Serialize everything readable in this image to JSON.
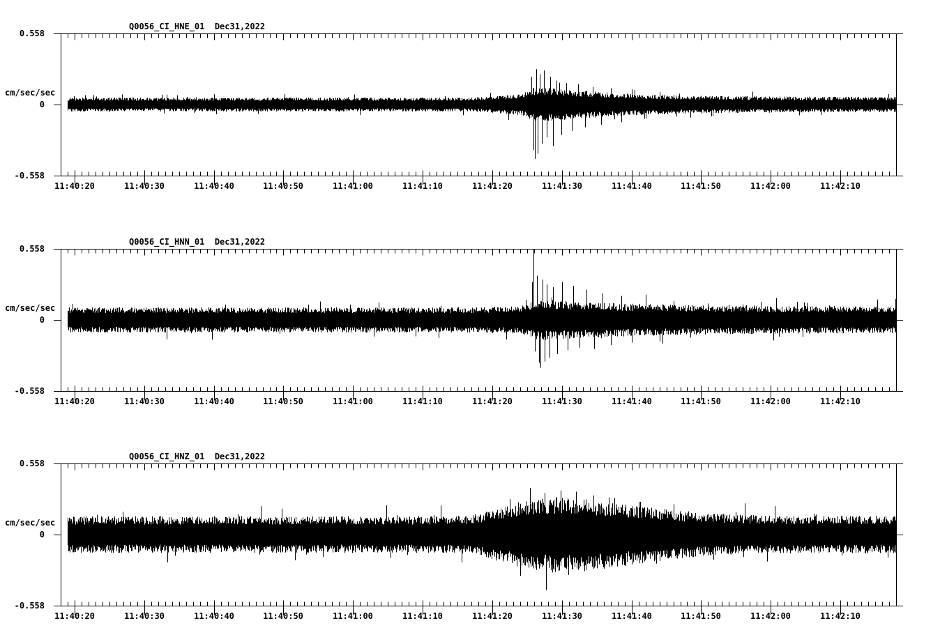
{
  "ui": {
    "background_color": "#ffffff",
    "ink_color": "#000000"
  },
  "time_axis": {
    "start": "11:40:18",
    "end": "11:42:18",
    "span_sec": 120,
    "minor_tick_sec": 1,
    "major_tick_sec": 10,
    "first_major_offset_sec": 2,
    "labels": [
      "11:40:20",
      "11:40:30",
      "11:40:40",
      "11:40:50",
      "11:41:00",
      "11:41:10",
      "11:41:20",
      "11:41:30",
      "11:41:40",
      "11:41:50",
      "11:42:00",
      "11:42:10"
    ]
  },
  "chart_data": [
    {
      "type": "line",
      "subtype": "seismogram",
      "title": "Q0056_CI_HNE_01  Dec31,2022",
      "station": "Q0056_CI_HNE_01",
      "date": "Dec31,2022",
      "ylabel": "cm/sec/sec",
      "yticks": [
        "0.558",
        "0",
        "-0.558"
      ],
      "ylim": [
        -0.558,
        0.558
      ],
      "event_peak_time": "11:41:26",
      "envelope": [
        [
          1,
          0.055
        ],
        [
          58,
          0.055
        ],
        [
          61,
          0.06
        ],
        [
          63,
          0.07
        ],
        [
          65,
          0.08
        ],
        [
          66.5,
          0.09
        ],
        [
          67.5,
          0.13
        ],
        [
          68.5,
          0.14
        ],
        [
          70,
          0.135
        ],
        [
          72,
          0.125
        ],
        [
          74,
          0.115
        ],
        [
          76,
          0.105
        ],
        [
          79,
          0.095
        ],
        [
          82,
          0.085
        ],
        [
          86,
          0.078
        ],
        [
          90,
          0.072
        ],
        [
          96,
          0.068
        ],
        [
          104,
          0.063
        ],
        [
          120,
          0.06
        ]
      ],
      "spikes": [
        [
          67.6,
          0.22
        ],
        [
          67.9,
          -0.36
        ],
        [
          68.1,
          -0.43
        ],
        [
          68.3,
          0.28
        ],
        [
          68.55,
          -0.39
        ],
        [
          68.8,
          0.24
        ],
        [
          69.1,
          -0.31
        ],
        [
          69.45,
          0.27
        ],
        [
          69.8,
          -0.26
        ],
        [
          70.3,
          0.22
        ],
        [
          70.7,
          -0.33
        ],
        [
          71.2,
          0.19
        ],
        [
          71.9,
          -0.24
        ],
        [
          72.6,
          0.17
        ],
        [
          73.4,
          -0.21
        ],
        [
          74.3,
          0.16
        ],
        [
          75.3,
          -0.18
        ],
        [
          76.4,
          0.14
        ],
        [
          77.6,
          -0.16
        ],
        [
          79,
          0.13
        ],
        [
          80.5,
          -0.14
        ],
        [
          82,
          0.12
        ],
        [
          84,
          -0.11
        ],
        [
          86,
          0.1
        ]
      ]
    },
    {
      "type": "line",
      "subtype": "seismogram",
      "title": "Q0056_CI_HNN_01  Dec31,2022",
      "station": "Q0056_CI_HNN_01",
      "date": "Dec31,2022",
      "ylabel": "cm/sec/sec",
      "yticks": [
        "0.558",
        "0",
        "-0.558"
      ],
      "ylim": [
        -0.558,
        0.558
      ],
      "event_peak_time": "11:41:26",
      "envelope": [
        [
          1,
          0.1
        ],
        [
          60,
          0.1
        ],
        [
          63,
          0.105
        ],
        [
          65,
          0.11
        ],
        [
          67,
          0.12
        ],
        [
          67.8,
          0.15
        ],
        [
          69,
          0.16
        ],
        [
          71,
          0.155
        ],
        [
          73,
          0.148
        ],
        [
          76,
          0.14
        ],
        [
          80,
          0.132
        ],
        [
          85,
          0.125
        ],
        [
          90,
          0.118
        ],
        [
          100,
          0.112
        ],
        [
          120,
          0.105
        ]
      ],
      "spikes": [
        [
          67.7,
          0.3
        ],
        [
          67.95,
          0.558
        ],
        [
          68.15,
          -0.25
        ],
        [
          68.4,
          0.35
        ],
        [
          68.7,
          -0.34
        ],
        [
          68.95,
          -0.38
        ],
        [
          69.2,
          0.32
        ],
        [
          69.5,
          -0.33
        ],
        [
          69.85,
          0.28
        ],
        [
          70.2,
          -0.3
        ],
        [
          70.7,
          0.26
        ],
        [
          71.3,
          -0.27
        ],
        [
          72,
          0.3
        ],
        [
          72.8,
          -0.24
        ],
        [
          73.6,
          0.27
        ],
        [
          74.5,
          -0.22
        ],
        [
          75.5,
          0.24
        ],
        [
          76.6,
          -0.23
        ],
        [
          77.8,
          0.21
        ],
        [
          79,
          -0.2
        ],
        [
          80.5,
          0.19
        ],
        [
          82,
          -0.18
        ],
        [
          84,
          0.2
        ],
        [
          86,
          -0.17
        ],
        [
          88,
          0.15
        ],
        [
          90.5,
          -0.14
        ],
        [
          93,
          0.13
        ],
        [
          96,
          0.12
        ]
      ]
    },
    {
      "type": "line",
      "subtype": "seismogram",
      "title": "Q0056_CI_HNZ_01  Dec31,2022",
      "station": "Q0056_CI_HNZ_01",
      "date": "Dec31,2022",
      "ylabel": "cm/sec/sec",
      "yticks": [
        "0.558",
        "0",
        "-0.558"
      ],
      "ylim": [
        -0.558,
        0.558
      ],
      "event_peak_time": "11:41:25",
      "envelope": [
        [
          1,
          0.145
        ],
        [
          56,
          0.145
        ],
        [
          59,
          0.155
        ],
        [
          61,
          0.18
        ],
        [
          63,
          0.22
        ],
        [
          65,
          0.25
        ],
        [
          67,
          0.27
        ],
        [
          69,
          0.285
        ],
        [
          71,
          0.3
        ],
        [
          73,
          0.295
        ],
        [
          75,
          0.285
        ],
        [
          77,
          0.275
        ],
        [
          79,
          0.26
        ],
        [
          81,
          0.245
        ],
        [
          84,
          0.225
        ],
        [
          87,
          0.205
        ],
        [
          90,
          0.185
        ],
        [
          93,
          0.17
        ],
        [
          97,
          0.158
        ],
        [
          102,
          0.15
        ],
        [
          120,
          0.148
        ]
      ],
      "spikes": [
        [
          64.5,
          0.28
        ],
        [
          66,
          -0.26
        ],
        [
          67.4,
          0.37
        ],
        [
          68.3,
          -0.28
        ],
        [
          69.5,
          0.33
        ],
        [
          70.6,
          -0.3
        ],
        [
          71.8,
          0.35
        ],
        [
          72.9,
          -0.32
        ],
        [
          74,
          0.34
        ],
        [
          75.2,
          -0.29
        ],
        [
          76.5,
          0.31
        ],
        [
          78,
          -0.27
        ],
        [
          79.5,
          0.29
        ],
        [
          81,
          -0.25
        ],
        [
          83,
          0.26
        ],
        [
          85.5,
          -0.23
        ],
        [
          88,
          0.24
        ]
      ]
    }
  ]
}
